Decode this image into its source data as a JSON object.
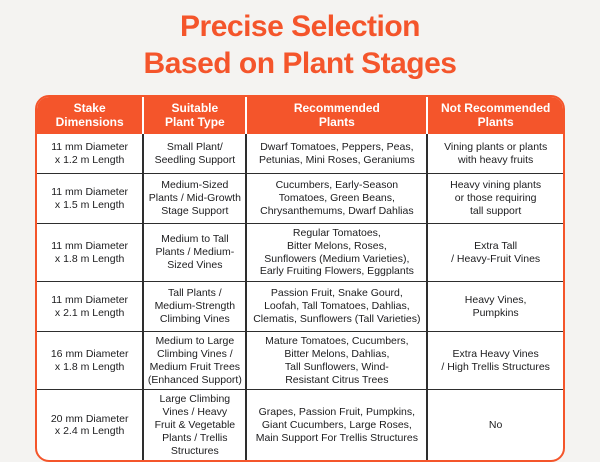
{
  "page": {
    "title_line1": "Precise Selection",
    "title_line2": "Based on Plant Stages"
  },
  "colors": {
    "accent": "#f4552b",
    "background": "#f4f3f1",
    "header_text": "#ffffff",
    "body_text": "#1c1c1e",
    "grid_line": "#2e2e2e"
  },
  "table": {
    "headers": [
      "Stake\nDimensions",
      "Suitable\nPlant Type",
      "Recommended\nPlants",
      "Not Recommended\nPlants"
    ],
    "rows": [
      [
        "11 mm Diameter\nx 1.2 m Length",
        "Small Plant/\nSeedling Support",
        "Dwarf Tomatoes, Peppers, Peas,\nPetunias, Mini Roses, Geraniums",
        "Vining plants or plants\nwith heavy fruits"
      ],
      [
        "11 mm Diameter\nx 1.5 m Length",
        "Medium-Sized\nPlants / Mid-Growth\nStage Support",
        "Cucumbers, Early-Season\nTomatoes, Green Beans,\nChrysanthemums, Dwarf Dahlias",
        "Heavy vining plants\nor those requiring\ntall support"
      ],
      [
        "11 mm Diameter\nx 1.8 m Length",
        "Medium to Tall\nPlants / Medium-\nSized Vines",
        "Regular Tomatoes,\nBitter Melons, Roses,\nSunflowers (Medium Varieties),\nEarly Fruiting Flowers, Eggplants",
        "Extra Tall\n/ Heavy-Fruit Vines"
      ],
      [
        "11 mm Diameter\nx 2.1 m Length",
        "Tall Plants /\nMedium-Strength\nClimbing Vines",
        "Passion Fruit, Snake Gourd,\nLoofah, Tall Tomatoes, Dahlias,\nClematis, Sunflowers (Tall Varieties)",
        "Heavy Vines,\nPumpkins"
      ],
      [
        "16 mm Diameter\nx 1.8 m Length",
        "Medium to Large\nClimbing Vines /\nMedium Fruit Trees\n(Enhanced Support)",
        "Mature Tomatoes, Cucumbers,\nBitter Melons, Dahlias,\nTall Sunflowers, Wind-\nResistant Citrus Trees",
        "Extra Heavy Vines\n/ High Trellis Structures"
      ],
      [
        "20 mm Diameter\nx 2.4 m Length",
        "Large Climbing\nVines / Heavy\nFruit & Vegetable\nPlants / Trellis\nStructures",
        "Grapes, Passion Fruit, Pumpkins,\nGiant Cucumbers, Large Roses,\nMain Support For Trellis Structures",
        "No"
      ]
    ]
  }
}
